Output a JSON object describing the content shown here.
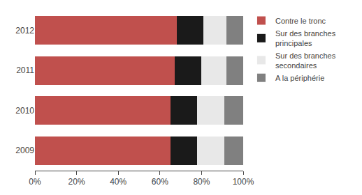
{
  "chart_data": {
    "type": "bar",
    "orientation": "horizontal",
    "stacked": true,
    "categories": [
      "2009",
      "2010",
      "2011",
      "2012"
    ],
    "series": [
      {
        "name": "Contre le tronc",
        "color": "#C0504D",
        "values": [
          65,
          65,
          67,
          68
        ]
      },
      {
        "name": "Sur des branches\nprincipales",
        "color": "#1a1a1a",
        "values": [
          13,
          13,
          13,
          13
        ]
      },
      {
        "name": "Sur des branches\nsecondaires",
        "color": "#E8E8E8",
        "values": [
          13,
          13,
          12,
          11
        ]
      },
      {
        "name": "A la périphérie",
        "color": "#808080",
        "values": [
          9,
          9,
          8,
          8
        ]
      }
    ],
    "xlim": [
      0,
      100
    ],
    "xticks": [
      {
        "value": 0,
        "label": "0%"
      },
      {
        "value": 20,
        "label": "20%"
      },
      {
        "value": 40,
        "label": "40%"
      },
      {
        "value": 60,
        "label": "60%"
      },
      {
        "value": 80,
        "label": "80%"
      },
      {
        "value": 100,
        "label": "100%"
      }
    ],
    "grid": false,
    "legend": "right"
  }
}
